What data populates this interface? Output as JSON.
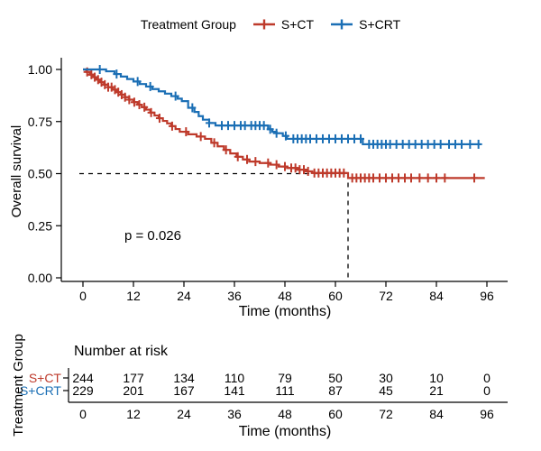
{
  "legend": {
    "title": "Treatment Group",
    "items": [
      {
        "label": "S+CT",
        "color": "#BE3A2B"
      },
      {
        "label": "S+CRT",
        "color": "#1B6FB5"
      }
    ]
  },
  "plot": {
    "ylabel": "Overall survival",
    "xlabel": "Time (months)",
    "pvalue": "p = 0.026",
    "ytick_labels": [
      "1.00",
      "0.75",
      "0.50",
      "0.25",
      "0.00"
    ]
  },
  "chart_data": {
    "type": "line",
    "subtype": "kaplan-meier-step",
    "title": "",
    "xlabel": "Time (months)",
    "ylabel": "Overall survival",
    "xlim": [
      0,
      96
    ],
    "ylim": [
      0,
      1
    ],
    "xticks": [
      0,
      12,
      24,
      36,
      48,
      60,
      72,
      84,
      96
    ],
    "yticks": [
      1.0,
      0.75,
      0.5,
      0.25,
      0.0
    ],
    "grid": false,
    "legend_position": "top",
    "pvalue_text": "p = 0.026",
    "median_line": {
      "time": 63,
      "survival": 0.5,
      "style": "dashed-hv"
    },
    "series": [
      {
        "name": "S+CT",
        "color": "#BE3A2B",
        "steps": [
          [
            0,
            1.0
          ],
          [
            0.8,
            0.988
          ],
          [
            1.6,
            0.975
          ],
          [
            2.4,
            0.963
          ],
          [
            3.2,
            0.951
          ],
          [
            4,
            0.939
          ],
          [
            5,
            0.927
          ],
          [
            6,
            0.915
          ],
          [
            7,
            0.903
          ],
          [
            8,
            0.891
          ],
          [
            9,
            0.879
          ],
          [
            10,
            0.867
          ],
          [
            11,
            0.855
          ],
          [
            12,
            0.843
          ],
          [
            13,
            0.831
          ],
          [
            14,
            0.819
          ],
          [
            15,
            0.807
          ],
          [
            16,
            0.793
          ],
          [
            17,
            0.779
          ],
          [
            18,
            0.766
          ],
          [
            19,
            0.753
          ],
          [
            20,
            0.741
          ],
          [
            21,
            0.728
          ],
          [
            22,
            0.714
          ],
          [
            23,
            0.701
          ],
          [
            25,
            0.689
          ],
          [
            27,
            0.678
          ],
          [
            29,
            0.667
          ],
          [
            30.5,
            0.648
          ],
          [
            32,
            0.631
          ],
          [
            33.5,
            0.614
          ],
          [
            35,
            0.597
          ],
          [
            36.5,
            0.581
          ],
          [
            38,
            0.568
          ],
          [
            39.5,
            0.558
          ],
          [
            42,
            0.551
          ],
          [
            44.5,
            0.543
          ],
          [
            46.5,
            0.534
          ],
          [
            48.5,
            0.527
          ],
          [
            51,
            0.519
          ],
          [
            53,
            0.511
          ],
          [
            54.5,
            0.503
          ],
          [
            63,
            0.479
          ],
          [
            95.5,
            0.479
          ]
        ],
        "censor_times": [
          1,
          2,
          2.8,
          3.6,
          4.4,
          5.2,
          6,
          6.8,
          7.6,
          8.4,
          9.2,
          10,
          11,
          12.2,
          13.4,
          14.6,
          16.2,
          18.2,
          21.2,
          24.5,
          28,
          31.2,
          34,
          36.8,
          39,
          41,
          44,
          46,
          48,
          49.5,
          50.5,
          51.5,
          52.5,
          53.5,
          55,
          56,
          57,
          58,
          59,
          60,
          61,
          62,
          64,
          65,
          66,
          67,
          68,
          69,
          70.5,
          72,
          73.5,
          75,
          76.5,
          78,
          80,
          82,
          84,
          86,
          93
        ]
      },
      {
        "name": "S+CRT",
        "color": "#1B6FB5",
        "steps": [
          [
            0,
            1.0
          ],
          [
            5.5,
            0.991
          ],
          [
            7.5,
            0.978
          ],
          [
            9,
            0.966
          ],
          [
            10.5,
            0.954
          ],
          [
            12,
            0.942
          ],
          [
            13.5,
            0.93
          ],
          [
            15,
            0.918
          ],
          [
            16.5,
            0.906
          ],
          [
            18,
            0.895
          ],
          [
            19.5,
            0.884
          ],
          [
            21,
            0.872
          ],
          [
            22.5,
            0.86
          ],
          [
            23.5,
            0.848
          ],
          [
            25,
            0.816
          ],
          [
            26.5,
            0.796
          ],
          [
            27.5,
            0.776
          ],
          [
            28.5,
            0.759
          ],
          [
            30,
            0.743
          ],
          [
            31.5,
            0.731
          ],
          [
            44,
            0.713
          ],
          [
            45,
            0.701
          ],
          [
            46,
            0.694
          ],
          [
            47.5,
            0.681
          ],
          [
            48.5,
            0.667
          ],
          [
            66.5,
            0.641
          ],
          [
            94.5,
            0.641
          ]
        ],
        "censor_times": [
          4,
          8,
          13,
          16,
          22,
          26,
          30,
          33,
          34.5,
          36,
          37.5,
          38.5,
          40,
          41,
          42,
          43,
          44.5,
          46,
          48.2,
          50,
          51,
          52,
          53,
          54,
          55.5,
          57,
          58.5,
          60,
          61.5,
          63,
          64.5,
          66,
          68,
          69,
          70,
          71,
          72,
          73,
          74.5,
          76,
          77.5,
          79,
          80.5,
          82,
          83.5,
          85,
          87,
          88.5,
          90,
          92,
          94
        ]
      }
    ]
  },
  "risk_table": {
    "title": "Number at risk",
    "ylabel": "Treatment Group",
    "xlabel": "Time (months)",
    "times": [
      0,
      12,
      24,
      36,
      48,
      60,
      72,
      84,
      96
    ],
    "rows": [
      {
        "label": "S+CT",
        "color": "#BE3A2B",
        "counts": [
          244,
          177,
          134,
          110,
          79,
          50,
          30,
          10,
          0
        ]
      },
      {
        "label": "S+CRT",
        "color": "#1B6FB5",
        "counts": [
          229,
          201,
          167,
          141,
          111,
          87,
          45,
          21,
          0
        ]
      }
    ]
  }
}
